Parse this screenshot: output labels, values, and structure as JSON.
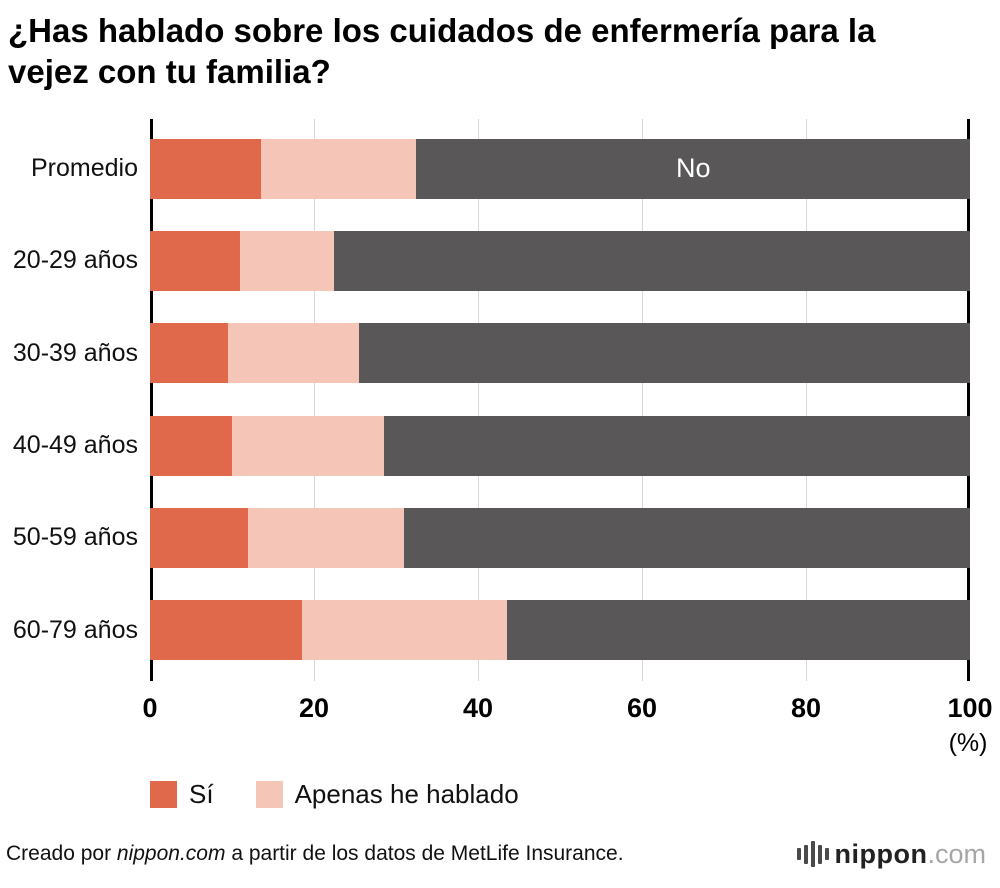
{
  "title": "¿Has hablado sobre los cuidados de enfermería para la vejez con tu familia?",
  "chart_data": {
    "type": "bar",
    "orientation": "horizontal",
    "stacked": true,
    "title": "¿Has hablado sobre los cuidados de enfermería para la vejez con tu familia?",
    "categories": [
      "Promedio",
      "20-29 años",
      "30-39 años",
      "40-49 años",
      "50-59 años",
      "60-79 años"
    ],
    "series": [
      {
        "name": "Sí",
        "color": "#e0694c",
        "values": [
          13.5,
          11.0,
          9.5,
          10.0,
          12.0,
          18.5
        ]
      },
      {
        "name": "Apenas he hablado",
        "color": "#f5c6b8",
        "values": [
          19.0,
          11.5,
          16.0,
          18.5,
          19.0,
          25.0
        ]
      },
      {
        "name": "No",
        "color": "#595757",
        "values": [
          67.5,
          77.5,
          74.5,
          71.5,
          69.0,
          56.5
        ]
      }
    ],
    "xlim": [
      0,
      100
    ],
    "x_ticks": [
      "0",
      "20",
      "40",
      "60",
      "80",
      "100"
    ],
    "x_tick_values": [
      0,
      20,
      40,
      60,
      80,
      100
    ],
    "x_unit": "(%)",
    "grid": true,
    "gridline_values": [
      20,
      40,
      60,
      80
    ],
    "legend_position": "bottom",
    "bar_label": {
      "text": "No",
      "row": 0,
      "series": "No",
      "color": "#ffffff"
    }
  },
  "legend": {
    "items": [
      {
        "label": "Sí",
        "color": "#e0694c"
      },
      {
        "label": "Apenas he hablado",
        "color": "#f5c6b8"
      }
    ]
  },
  "footer": {
    "credit_prefix": "Creado por ",
    "credit_source": "nippon.com",
    "credit_suffix": " a partir de los datos de MetLife Insurance.",
    "logo_text": "nippon",
    "logo_suffix": ".com"
  }
}
